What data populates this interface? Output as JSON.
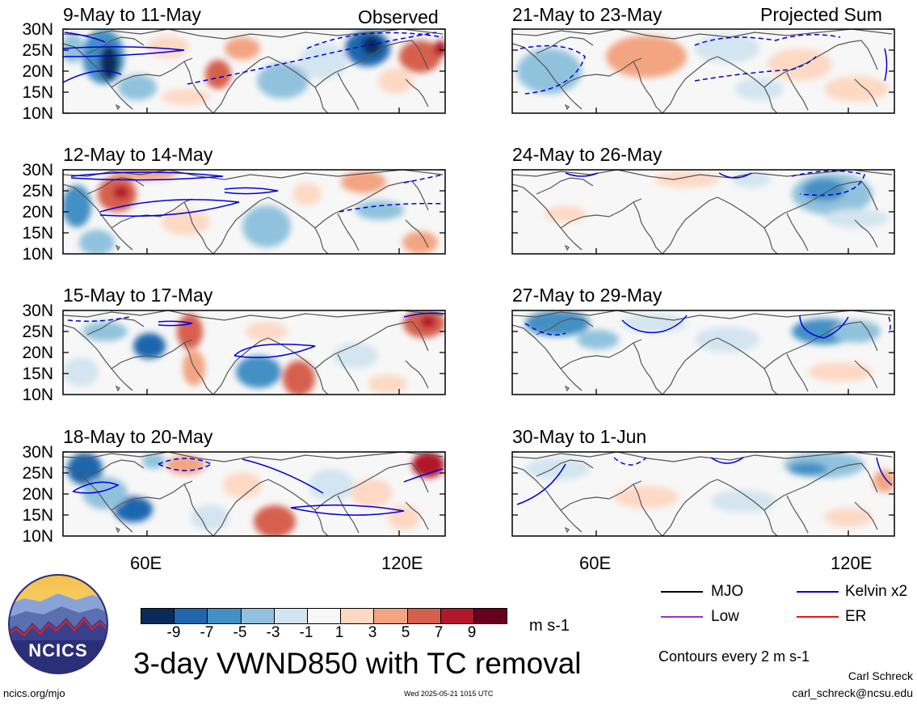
{
  "header": {
    "observed_label": "Observed",
    "projected_label": "Projected Sum"
  },
  "panels": {
    "left": [
      {
        "title": "9-May to 11-May"
      },
      {
        "title": "12-May to 14-May"
      },
      {
        "title": "15-May to 17-May"
      },
      {
        "title": "18-May to 20-May"
      }
    ],
    "right": [
      {
        "title": "21-May to 23-May"
      },
      {
        "title": "24-May to 26-May"
      },
      {
        "title": "27-May to 29-May"
      },
      {
        "title": "30-May to 1-Jun"
      }
    ]
  },
  "axes": {
    "lat_labels": [
      "30N",
      "25N",
      "20N",
      "15N",
      "10N"
    ],
    "lon_labels": [
      "60E",
      "120E"
    ]
  },
  "colorbar": {
    "tick_labels": [
      "-9",
      "-7",
      "-5",
      "-3",
      "-1",
      "1",
      "3",
      "5",
      "7",
      "9"
    ],
    "units": "m s-1",
    "colors": [
      "#0a2a5a",
      "#1f66ad",
      "#4290c4",
      "#91c2dd",
      "#d3e5f0",
      "#f7f7f7",
      "#fdd9c4",
      "#f3a481",
      "#d6604d",
      "#b2182b",
      "#67001f"
    ]
  },
  "legend": {
    "mjo": "MJO",
    "kelvin": "Kelvin x2",
    "low": "Low",
    "er": "ER",
    "colors": {
      "mjo": "#000000",
      "kelvin": "#0000dd",
      "low": "#9933cc",
      "er": "#ee1111"
    }
  },
  "footer": {
    "title": "3-day VWND850 with TC removal",
    "contours_note": "Contours every 2 m s-1",
    "author": "Carl Schreck",
    "email": "carl_schreck@ncsu.edu",
    "site": "ncics.org/mjo",
    "timestamp": "Wed 2025-05-21 1015 UTC",
    "logo_text": "NCICS"
  }
}
